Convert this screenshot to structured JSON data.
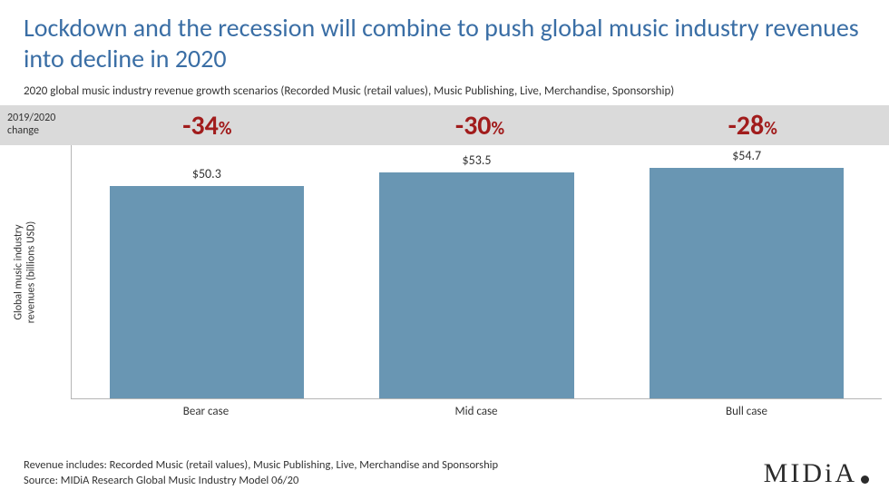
{
  "title": "Lockdown and the recession will combine to push global music industry revenues into decline in 2020",
  "subtitle": "2020 global music industry revenue growth scenarios (Recorded Music (retail values), Music Publishing, Live, Merchandise, Sponsorship)",
  "change_row": {
    "label": "2019/2020\nchange",
    "bg_color": "#dadada",
    "text_color": "#333333",
    "value_color": "#a11c1c"
  },
  "y_axis_label": "Global music industry\nrevenues (billions USD)",
  "chart": {
    "type": "bar",
    "bar_color": "#6996b3",
    "value_label_color": "#333333",
    "x_label_color": "#333333",
    "axis_color": "#b5b5b5",
    "ymax": 60,
    "bar_width_pct": 72,
    "series": [
      {
        "change_big": "-34",
        "change_pct": "%",
        "value": 50.3,
        "value_label": "$50.3",
        "x_label": "Bear case"
      },
      {
        "change_big": "-30",
        "change_pct": "%",
        "value": 53.5,
        "value_label": "$53.5",
        "x_label": "Mid case"
      },
      {
        "change_big": "-28",
        "change_pct": "%",
        "value": 54.7,
        "value_label": "$54.7",
        "x_label": "Bull case"
      }
    ]
  },
  "footnotes": {
    "line1": "Revenue includes: Recorded Music (retail values), Music Publishing, Live, Merchandise and Sponsorship",
    "line2": "Source: MIDiA Research Global Music Industry Model 06/20",
    "color": "#333333"
  },
  "logo": {
    "text": "MIDiA",
    "color": "#2b2b2b",
    "dot_color": "#2b2b2b",
    "dot_size": 9
  },
  "colors": {
    "title": "#3a6ea5",
    "subtitle": "#333333",
    "background": "#ffffff"
  },
  "fonts": {
    "title_size": 28,
    "subtitle_size": 13,
    "change_big_size": 30,
    "change_pct_size": 20,
    "bar_value_size": 14,
    "x_label_size": 13,
    "y_label_size": 12,
    "footnote_size": 12.5,
    "logo_size": 30
  }
}
